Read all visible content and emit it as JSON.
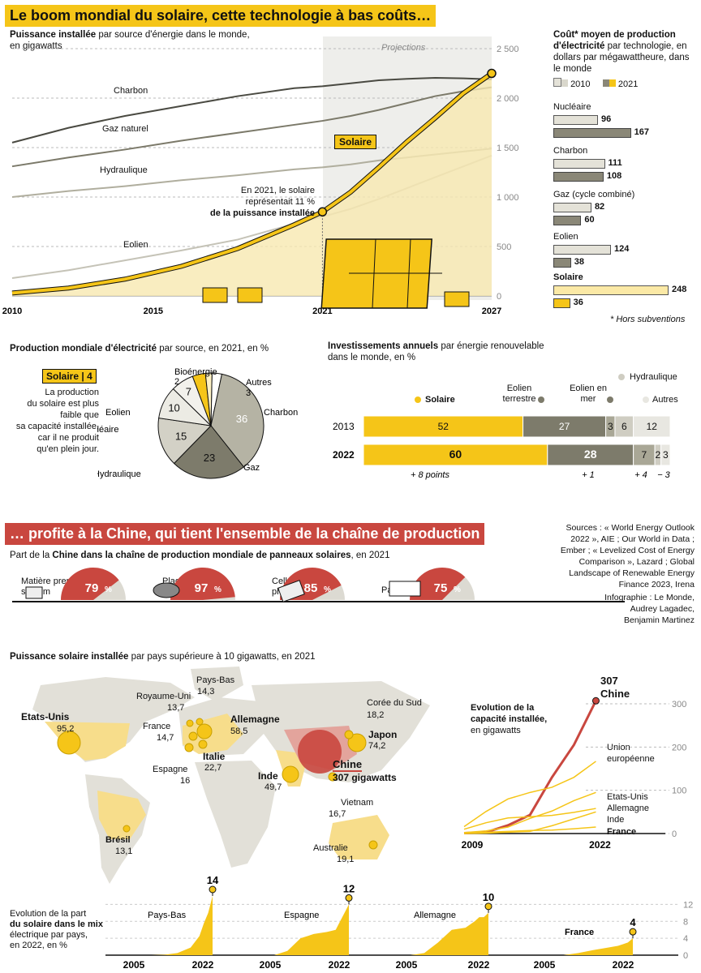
{
  "header": {
    "title1": "Le boom mondial du solaire, cette technologie à bas coûts…",
    "title2": "… profite à la Chine, qui tient l'ensemble de la chaîne de production"
  },
  "capacity": {
    "title_bold": "Puissance installée",
    "title_rest": " par source d'énergie dans le monde, en gigawatts",
    "projections_label": "Projections",
    "solar_tag": "Solaire",
    "annotation_line1": "En 2021, le solaire",
    "annotation_line2": "représentait 11 %",
    "annotation_line3": "de la puissance installée",
    "series_labels": [
      "Charbon",
      "Gaz naturel",
      "Hydraulique",
      "Eolien"
    ]
  },
  "cost": {
    "title_bold": "Coût* moyen de production d'électricité",
    "title_rest": " par technologie, en dollars par mégawattheure, dans le monde",
    "legend_2010": "2010",
    "legend_2021": "2021",
    "footnote": "* Hors subventions",
    "groups": [
      {
        "label": "Nucléaire",
        "v2010": 96,
        "v2021": 167
      },
      {
        "label": "Charbon",
        "v2010": 111,
        "v2021": 108
      },
      {
        "label": "Gaz (cycle combiné)",
        "v2010": 82,
        "v2021": 60
      },
      {
        "label": "Eolien",
        "v2010": 124,
        "v2021": 38
      },
      {
        "label": "Solaire",
        "v2010": 248,
        "v2021": 36
      }
    ]
  },
  "production": {
    "title_bold": "Production mondiale d'électricité",
    "title_rest": " par source, en 2021, en %",
    "solar_tag": "Solaire",
    "solar_value": "4",
    "note_lines": [
      "La production",
      "du solaire est plus",
      "faible que",
      "sa capacité installée,",
      "car il ne produit",
      "qu'en plein jour."
    ]
  },
  "investment": {
    "title_bold": "Investissements annuels",
    "title_rest": " par énergie renouvelable dans le monde, en %",
    "header_solaire": "Solaire",
    "header_eolien_terrestre": "Eolien terrestre",
    "header_eolien_mer": "Eolien en mer",
    "header_hydraulique": "Hydraulique",
    "header_autres": "Autres",
    "deltas": [
      "+ 8 points",
      "+ 1",
      "+ 4",
      "− 3"
    ]
  },
  "china_chain": {
    "title_pre": "Part de la ",
    "title_bold": "Chine dans la chaîne de production mondiale de panneaux solaires",
    "title_post": ", en 2021",
    "items": [
      {
        "label": "Matière première : silicium",
        "value": 79,
        "unit": "%"
      },
      {
        "label": "Plaquette de silicium",
        "value": 97,
        "unit": "%"
      },
      {
        "label": "Cellules photovoltaïques",
        "value": 85,
        "unit": "%"
      },
      {
        "label": "Panneaux",
        "value": 75,
        "unit": "%"
      }
    ]
  },
  "sources": {
    "lines": [
      "Sources : « World Energy Outlook",
      "2022 », AIE ; Our World in Data ;",
      "Ember ; « Levelized Cost of Energy",
      "Comparison », Lazard ; Global",
      "Landscape of Renewable Energy",
      "Finance 2023, Irena"
    ],
    "credit_lines": [
      "Infographie : Le Monde,",
      "Audrey Lagadec,",
      "Benjamin Martinez"
    ]
  },
  "map": {
    "title_bold": "Puissance solaire installée",
    "title_rest": " par pays supérieure à 10 gigawatts, en 2021",
    "countries": [
      {
        "name": "Etats-Unis",
        "value": "95,2"
      },
      {
        "name": "Pays-Bas",
        "value": "14,3"
      },
      {
        "name": "Royaume-Uni",
        "value": "13,7"
      },
      {
        "name": "France",
        "value": "14,7"
      },
      {
        "name": "Allemagne",
        "value": "58,5"
      },
      {
        "name": "Italie",
        "value": "22,7"
      },
      {
        "name": "Espagne",
        "value": "16"
      },
      {
        "name": "Inde",
        "value": "49,7"
      },
      {
        "name": "Chine",
        "value": "307 gigawatts"
      },
      {
        "name": "Corée du Sud",
        "value": "18,2"
      },
      {
        "name": "Japon",
        "value": "74,2"
      },
      {
        "name": "Vietnam",
        "value": "16,7"
      },
      {
        "name": "Brésil",
        "value": "13,1"
      },
      {
        "name": "Australie",
        "value": "19,1"
      }
    ]
  },
  "evolution": {
    "title_lines": [
      "Evolution de la",
      "capacité installée,",
      "en gigawatts"
    ],
    "china_value": "307",
    "china_label": "Chine",
    "series_labels": [
      "Union",
      "européenne",
      "Etats-Unis",
      "Allemagne",
      "Inde",
      "France"
    ]
  },
  "mix": {
    "title_lines": [
      "Evolution de la part",
      "du solaire dans le mix",
      "électrique par pays,",
      "en 2022, en %"
    ],
    "title_bold_words": "solaire dans le mix électrique",
    "countries": [
      {
        "name": "Pays-Bas",
        "value": "14"
      },
      {
        "name": "Espagne",
        "value": "12"
      },
      {
        "name": "Allemagne",
        "value": "10"
      },
      {
        "name": "France",
        "value": "4"
      }
    ],
    "x_start": "2005",
    "x_end": "2022"
  },
  "chart_data": [
    {
      "type": "line",
      "title": "Puissance installée par source d'énergie dans le monde, en gigawatts",
      "x": [
        2010,
        2012,
        2014,
        2016,
        2018,
        2020,
        2021,
        2022,
        2023,
        2024,
        2025,
        2026,
        2027
      ],
      "xticks": [
        "2010",
        "2015",
        "2021",
        "2027"
      ],
      "ylim": [
        0,
        2500
      ],
      "yticks": [
        "0",
        "500",
        "1 000",
        "1 500",
        "2 000",
        "2 500"
      ],
      "projection_from": 2021,
      "series": [
        {
          "name": "Charbon",
          "values": [
            1550,
            1700,
            1820,
            1920,
            2020,
            2100,
            2120,
            2150,
            2180,
            2195,
            2205,
            2200,
            2190
          ]
        },
        {
          "name": "Gaz naturel",
          "values": [
            1310,
            1400,
            1480,
            1570,
            1650,
            1730,
            1770,
            1820,
            1880,
            1950,
            2020,
            2070,
            2110
          ]
        },
        {
          "name": "Hydraulique",
          "values": [
            1000,
            1060,
            1110,
            1170,
            1220,
            1280,
            1300,
            1330,
            1370,
            1400,
            1430,
            1460,
            1490
          ]
        },
        {
          "name": "Eolien",
          "values": [
            180,
            260,
            360,
            460,
            570,
            730,
            800,
            880,
            980,
            1090,
            1200,
            1310,
            1420
          ]
        },
        {
          "name": "Solaire",
          "values": [
            30,
            80,
            170,
            300,
            480,
            720,
            850,
            1050,
            1300,
            1560,
            1800,
            2050,
            2250
          ]
        }
      ]
    },
    {
      "type": "bar",
      "title": "Coût* moyen de production d'électricité par technologie, en dollars par mégawattheure, dans le monde",
      "categories": [
        "Nucléaire",
        "Charbon",
        "Gaz (cycle combiné)",
        "Eolien",
        "Solaire"
      ],
      "series": [
        {
          "name": "2010",
          "values": [
            96,
            111,
            82,
            124,
            248
          ]
        },
        {
          "name": "2021",
          "values": [
            167,
            108,
            60,
            38,
            36
          ]
        }
      ]
    },
    {
      "type": "pie",
      "title": "Production mondiale d'électricité par source, en 2021, en %",
      "categories": [
        "Charbon",
        "Gaz",
        "Hydraulique",
        "Nucléaire",
        "Eolien",
        "Solaire",
        "Bioénergie",
        "Autres"
      ],
      "values": [
        36,
        23,
        15,
        10,
        7,
        4,
        2,
        3
      ]
    },
    {
      "type": "bar",
      "title": "Investissements annuels par énergie renouvelable dans le monde, en %",
      "categories": [
        "2013",
        "2022"
      ],
      "series": [
        {
          "name": "Solaire",
          "values": [
            52,
            60
          ]
        },
        {
          "name": "Eolien terrestre",
          "values": [
            27,
            28
          ]
        },
        {
          "name": "Eolien en mer",
          "values": [
            3,
            7
          ]
        },
        {
          "name": "Hydraulique",
          "values": [
            6,
            2
          ]
        },
        {
          "name": "Autres",
          "values": [
            12,
            3
          ]
        }
      ]
    },
    {
      "type": "line",
      "title": "Evolution de la capacité installée, en gigawatts",
      "x": [
        2009,
        2011,
        2013,
        2015,
        2017,
        2019,
        2021
      ],
      "xticks": [
        "2009",
        "2022"
      ],
      "ylim": [
        0,
        300
      ],
      "yticks": [
        "0",
        "100",
        "200",
        "300"
      ],
      "series": [
        {
          "name": "Chine",
          "values": [
            1,
            3,
            19,
            43,
            130,
            205,
            307
          ]
        },
        {
          "name": "Union européenne",
          "values": [
            16,
            51,
            80,
            95,
            107,
            130,
            167
          ]
        },
        {
          "name": "Etats-Unis",
          "values": [
            2,
            6,
            15,
            35,
            52,
            76,
            95
          ]
        },
        {
          "name": "Allemagne",
          "values": [
            10,
            25,
            36,
            39,
            42,
            49,
            58
          ]
        },
        {
          "name": "Inde",
          "values": [
            0,
            1,
            3,
            5,
            18,
            34,
            50
          ]
        },
        {
          "name": "France",
          "values": [
            0,
            3,
            5,
            7,
            8,
            11,
            15
          ]
        }
      ]
    },
    {
      "type": "area",
      "title": "Evolution de la part du solaire dans le mix électrique par pays, en 2022, en %",
      "x": [
        2005,
        2008,
        2011,
        2014,
        2017,
        2019,
        2020,
        2021,
        2022
      ],
      "yticks": [
        "0",
        "4",
        "8",
        "12"
      ],
      "series": [
        {
          "name": "Pays-Bas",
          "values": [
            0,
            0,
            0.1,
            0.5,
            1.8,
            4.5,
            7.5,
            10,
            14
          ]
        },
        {
          "name": "Espagne",
          "values": [
            0,
            1,
            4,
            5,
            5.5,
            6,
            8,
            10,
            12
          ]
        },
        {
          "name": "Allemagne",
          "values": [
            0,
            0.5,
            3,
            6,
            6.5,
            8,
            9,
            9,
            10
          ]
        },
        {
          "name": "France",
          "values": [
            0,
            0,
            0.5,
            1.2,
            1.8,
            2.2,
            2.6,
            3,
            4
          ]
        }
      ]
    }
  ]
}
